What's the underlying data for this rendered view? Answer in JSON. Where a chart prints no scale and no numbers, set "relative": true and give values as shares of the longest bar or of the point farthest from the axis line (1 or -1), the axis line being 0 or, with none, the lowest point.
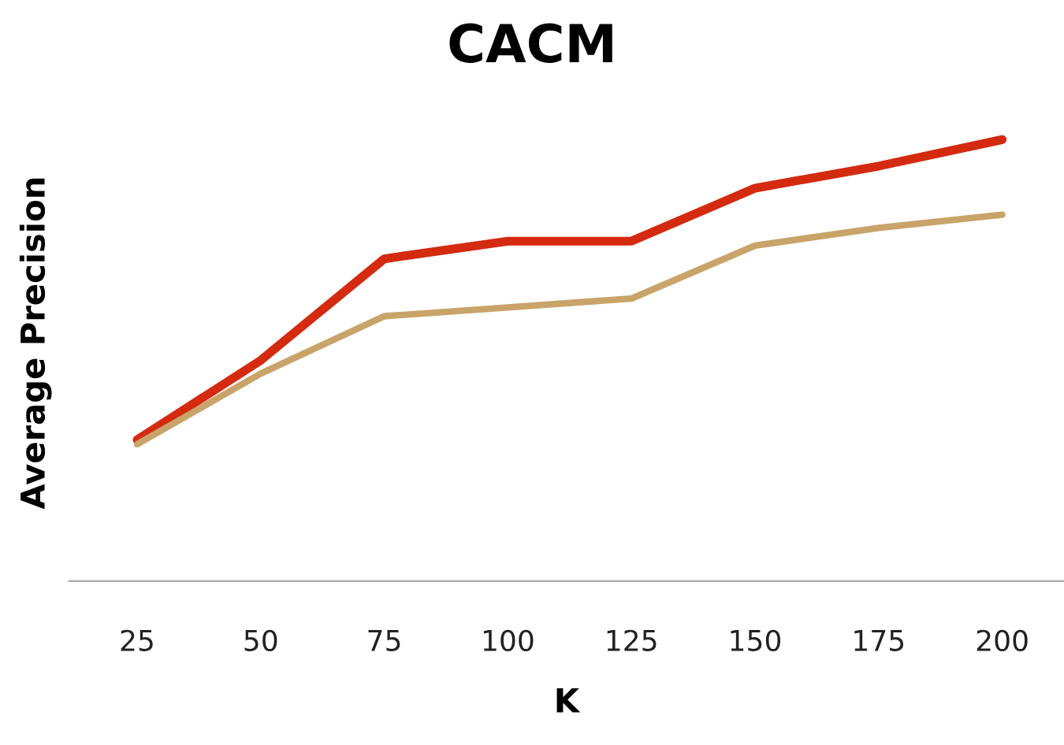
{
  "chart_data": {
    "type": "line",
    "title": "CACM",
    "xlabel": "K",
    "ylabel": "Average Precision",
    "relative": true,
    "categories": [
      "25",
      "50",
      "75",
      "100",
      "125",
      "150",
      "175",
      "200"
    ],
    "series": [
      {
        "color": "#d42a10",
        "values": [
          0.32,
          0.5,
          0.73,
          0.77,
          0.77,
          0.89,
          0.94,
          1.0
        ]
      },
      {
        "color": "#c8a46a",
        "values": [
          0.31,
          0.47,
          0.6,
          0.62,
          0.64,
          0.76,
          0.8,
          0.83
        ]
      }
    ],
    "grid": false,
    "legend": false,
    "marker": "none",
    "line_style": "solid"
  }
}
